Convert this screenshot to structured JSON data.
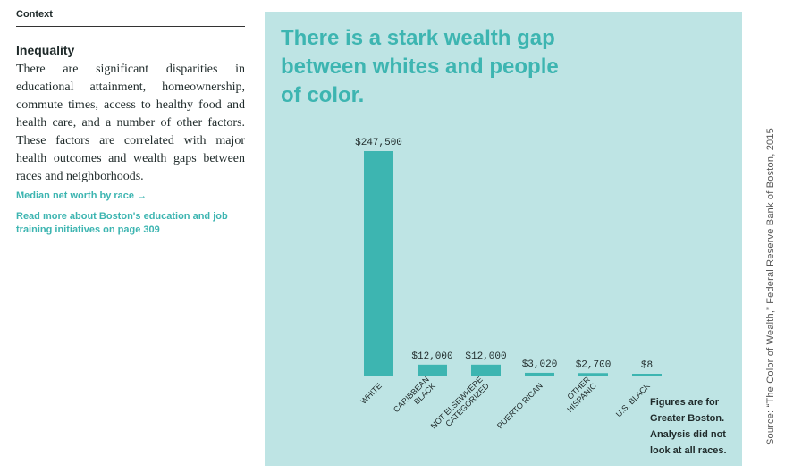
{
  "sidebar": {
    "context_label": "Context",
    "heading": "Inequality",
    "body": "There are significant disparities in educational attainment, homeownership, commute times, access to healthy food and health care, and a number of other factors. These factors are correlated with major health outcomes and wealth gaps between races and neighborhoods.",
    "link_median": "Median net worth by race →",
    "link_read_more": "Read more about Boston's education and job training initiatives on page 309"
  },
  "note": "Figures are for Greater Boston. Analysis did not look at all races.",
  "source": "Source: “The Color of Wealth,” Federal Reserve Bank of Boston, 2015",
  "colors": {
    "bar": "#3db5b1",
    "panel": "#bee4e4",
    "accent": "#3db5b1"
  },
  "chart_data": {
    "type": "bar",
    "title": "There is a stark wealth gap between whites and people of color.",
    "categories": [
      [
        "WHITE"
      ],
      [
        "CARIBBEAN",
        "BLACK"
      ],
      [
        "NOT ELSEWHERE",
        "CATEGORIZED"
      ],
      [
        "PUERTO RICAN"
      ],
      [
        "OTHER",
        "HISPANIC"
      ],
      [
        "U.S. BLACK"
      ]
    ],
    "values": [
      247500,
      12000,
      12000,
      3020,
      2700,
      8
    ],
    "data_labels": [
      "$247,500",
      "$12,000",
      "$12,000",
      "$3,020",
      "$2,700",
      "$8"
    ],
    "ylim": [
      0,
      247500
    ],
    "xlabel": "",
    "ylabel": "",
    "grid": false
  }
}
